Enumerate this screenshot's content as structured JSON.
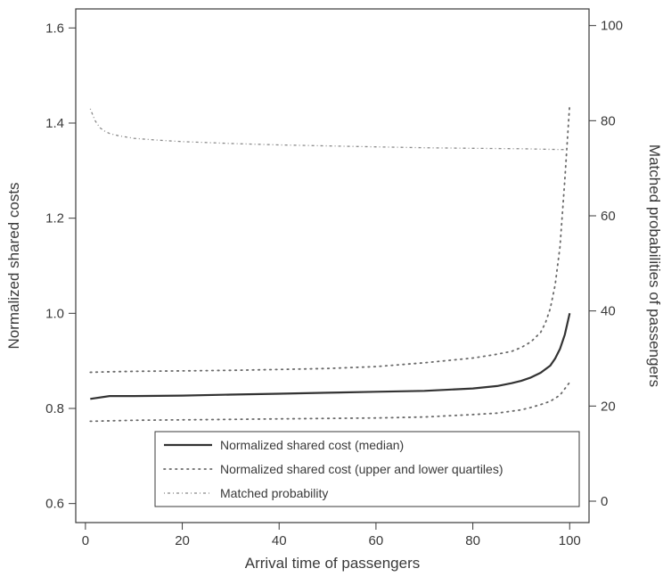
{
  "chart_data": {
    "type": "line",
    "xlabel": "Arrival time of passengers",
    "ylabel_left": "Normalized shared costs",
    "ylabel_right": "Matched probabilities of passengers",
    "xlim": [
      -2,
      104
    ],
    "ylim_left": [
      0.56,
      1.64
    ],
    "ylim_right": [
      -4.5,
      103.5
    ],
    "x_ticks": [
      0,
      20,
      40,
      60,
      80,
      100
    ],
    "x_tick_labels": [
      "0",
      "20",
      "40",
      "60",
      "80",
      "100"
    ],
    "y_left_ticks": [
      0.6,
      0.8,
      1.0,
      1.2,
      1.4,
      1.6
    ],
    "y_left_tick_labels": [
      "0.6",
      "0.8",
      "1.0",
      "1.2",
      "1.4",
      "1.6"
    ],
    "y_right_ticks": [
      0,
      20,
      40,
      60,
      80,
      100
    ],
    "y_right_tick_labels": [
      "0",
      "20",
      "40",
      "60",
      "80",
      "100"
    ],
    "grid": false,
    "legend_position": "bottom-center",
    "legend": [
      "Normalized shared cost (median)",
      "Normalized shared cost (upper and lower quartiles)",
      "Matched probability"
    ],
    "series": [
      {
        "name": "Normalized shared cost (median)",
        "axis": "left",
        "style": "solid",
        "x": [
          1,
          5,
          10,
          20,
          30,
          40,
          50,
          60,
          70,
          80,
          85,
          88,
          90,
          92,
          94,
          96,
          97,
          98,
          99,
          100
        ],
        "y": [
          0.82,
          0.826,
          0.826,
          0.827,
          0.829,
          0.831,
          0.833,
          0.835,
          0.837,
          0.842,
          0.847,
          0.853,
          0.858,
          0.865,
          0.875,
          0.89,
          0.905,
          0.925,
          0.955,
          1.0
        ]
      },
      {
        "name": "Normalized shared cost (upper quartile)",
        "axis": "left",
        "style": "dotted",
        "x": [
          1,
          5,
          10,
          20,
          30,
          40,
          50,
          60,
          70,
          80,
          85,
          88,
          90,
          92,
          94,
          95,
          96,
          97,
          98,
          99,
          100
        ],
        "y": [
          0.876,
          0.877,
          0.878,
          0.879,
          0.88,
          0.882,
          0.884,
          0.888,
          0.896,
          0.906,
          0.914,
          0.92,
          0.928,
          0.94,
          0.96,
          0.98,
          1.01,
          1.06,
          1.14,
          1.28,
          1.44
        ]
      },
      {
        "name": "Normalized shared cost (lower quartile)",
        "axis": "left",
        "style": "dotted",
        "x": [
          1,
          10,
          20,
          30,
          40,
          50,
          60,
          70,
          80,
          85,
          90,
          92,
          94,
          96,
          98,
          100
        ],
        "y": [
          0.773,
          0.775,
          0.776,
          0.777,
          0.778,
          0.779,
          0.78,
          0.782,
          0.787,
          0.79,
          0.797,
          0.802,
          0.808,
          0.815,
          0.828,
          0.855
        ]
      },
      {
        "name": "Matched probability",
        "axis": "right",
        "style": "dotdash",
        "x": [
          1,
          2,
          3,
          4,
          5,
          7,
          10,
          15,
          20,
          30,
          40,
          50,
          60,
          70,
          80,
          90,
          100
        ],
        "y": [
          82.5,
          80,
          78.5,
          77.8,
          77.3,
          76.8,
          76.3,
          75.9,
          75.6,
          75.2,
          74.9,
          74.7,
          74.5,
          74.3,
          74.2,
          74.1,
          73.9
        ]
      }
    ]
  }
}
